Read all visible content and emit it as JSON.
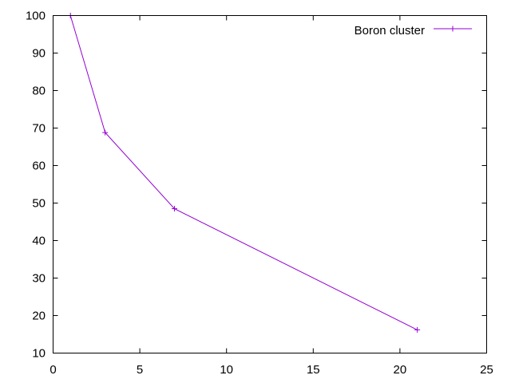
{
  "chart_data": {
    "type": "line",
    "title": "",
    "xlabel": "",
    "ylabel": "",
    "xlim": [
      0,
      25
    ],
    "ylim": [
      10,
      100
    ],
    "xticks": [
      0,
      5,
      10,
      15,
      20,
      25
    ],
    "yticks": [
      10,
      20,
      30,
      40,
      50,
      60,
      70,
      80,
      90,
      100
    ],
    "grid": false,
    "legend_position": "top-right",
    "series": [
      {
        "name": "Boron cluster",
        "color": "#9400d3",
        "marker": "plus",
        "x": [
          1,
          3,
          7,
          21
        ],
        "y": [
          100,
          68.8,
          48.5,
          16.2
        ]
      }
    ]
  }
}
